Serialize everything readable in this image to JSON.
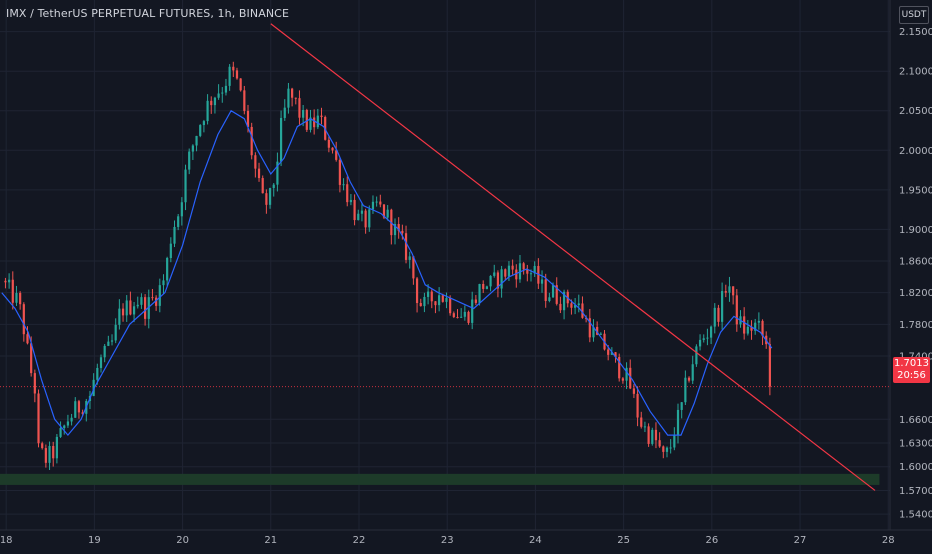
{
  "header": {
    "title": "IMX / TetherUS PERPETUAL FUTURES, 1h, BINANCE",
    "currency": "USDT"
  },
  "price_tag": {
    "price": "1.7013",
    "countdown": "20:56",
    "color": "#f23645"
  },
  "colors": {
    "background": "#131722",
    "grid": "#1f2433",
    "axis_text": "#b2b5be",
    "candle_up": "#26a69a",
    "candle_down": "#ef5350",
    "ma_line": "#2962ff",
    "trendline": "#f23645",
    "support_zone": "#1e3d2a"
  },
  "chart_data": {
    "type": "candlestick",
    "title": "IMX / TetherUS PERPETUAL FUTURES, 1h, BINANCE",
    "xlabel": "",
    "ylabel": "",
    "x_ticks": [
      "18",
      "19",
      "20",
      "21",
      "22",
      "23",
      "24",
      "25",
      "26",
      "27",
      "28"
    ],
    "y_ticks": [
      "2.1500",
      "2.1000",
      "2.0500",
      "2.0000",
      "1.9500",
      "1.9000",
      "1.8600",
      "1.8200",
      "1.7800",
      "1.7400",
      "1.6600",
      "1.6300",
      "1.6000",
      "1.5700",
      "1.5400"
    ],
    "ylim": [
      1.52,
      2.19
    ],
    "xlim": [
      17.93,
      28.02
    ],
    "grid": true,
    "last_price": 1.7013,
    "close_path": [
      [
        17.95,
        1.835
      ],
      [
        18.05,
        1.82
      ],
      [
        18.12,
        1.81
      ],
      [
        18.18,
        1.79
      ],
      [
        18.22,
        1.76
      ],
      [
        18.28,
        1.72
      ],
      [
        18.32,
        1.71
      ],
      [
        18.36,
        1.62
      ],
      [
        18.45,
        1.61
      ],
      [
        18.52,
        1.615
      ],
      [
        18.6,
        1.635
      ],
      [
        18.7,
        1.66
      ],
      [
        18.78,
        1.67
      ],
      [
        18.86,
        1.68
      ],
      [
        18.95,
        1.69
      ],
      [
        19.05,
        1.73
      ],
      [
        19.15,
        1.745
      ],
      [
        19.22,
        1.76
      ],
      [
        19.3,
        1.8
      ],
      [
        19.38,
        1.8
      ],
      [
        19.45,
        1.81
      ],
      [
        19.5,
        1.81
      ],
      [
        19.58,
        1.8
      ],
      [
        19.65,
        1.81
      ],
      [
        19.72,
        1.82
      ],
      [
        19.8,
        1.84
      ],
      [
        19.88,
        1.9
      ],
      [
        19.95,
        1.92
      ],
      [
        20.05,
        1.98
      ],
      [
        20.15,
        2.02
      ],
      [
        20.25,
        2.05
      ],
      [
        20.35,
        2.07
      ],
      [
        20.45,
        2.08
      ],
      [
        20.55,
        2.1
      ],
      [
        20.62,
        2.085
      ],
      [
        20.7,
        2.05
      ],
      [
        20.78,
        2.0
      ],
      [
        20.85,
        1.96
      ],
      [
        20.92,
        1.93
      ],
      [
        21.0,
        1.94
      ],
      [
        21.05,
        1.97
      ],
      [
        21.12,
        2.03
      ],
      [
        21.2,
        2.07
      ],
      [
        21.28,
        2.06
      ],
      [
        21.35,
        2.04
      ],
      [
        21.45,
        2.03
      ],
      [
        21.55,
        2.04
      ],
      [
        21.62,
        2.02
      ],
      [
        21.7,
        2.0
      ],
      [
        21.78,
        1.97
      ],
      [
        21.85,
        1.95
      ],
      [
        21.92,
        1.93
      ],
      [
        22.0,
        1.91
      ],
      [
        22.1,
        1.91
      ],
      [
        22.2,
        1.93
      ],
      [
        22.3,
        1.92
      ],
      [
        22.4,
        1.9
      ],
      [
        22.5,
        1.88
      ],
      [
        22.58,
        1.86
      ],
      [
        22.65,
        1.82
      ],
      [
        22.72,
        1.8
      ],
      [
        22.8,
        1.81
      ],
      [
        22.9,
        1.82
      ],
      [
        23.0,
        1.81
      ],
      [
        23.08,
        1.8
      ],
      [
        23.15,
        1.79
      ],
      [
        23.22,
        1.79
      ],
      [
        23.3,
        1.81
      ],
      [
        23.4,
        1.83
      ],
      [
        23.5,
        1.83
      ],
      [
        23.6,
        1.84
      ],
      [
        23.7,
        1.85
      ],
      [
        23.8,
        1.85
      ],
      [
        23.9,
        1.85
      ],
      [
        24.0,
        1.84
      ],
      [
        24.1,
        1.82
      ],
      [
        24.2,
        1.82
      ],
      [
        24.3,
        1.81
      ],
      [
        24.4,
        1.81
      ],
      [
        24.5,
        1.8
      ],
      [
        24.6,
        1.78
      ],
      [
        24.7,
        1.76
      ],
      [
        24.8,
        1.75
      ],
      [
        24.9,
        1.73
      ],
      [
        25.0,
        1.72
      ],
      [
        25.08,
        1.7
      ],
      [
        25.15,
        1.67
      ],
      [
        25.22,
        1.65
      ],
      [
        25.3,
        1.64
      ],
      [
        25.38,
        1.63
      ],
      [
        25.45,
        1.61
      ],
      [
        25.52,
        1.62
      ],
      [
        25.58,
        1.65
      ],
      [
        25.65,
        1.67
      ],
      [
        25.72,
        1.71
      ],
      [
        25.8,
        1.74
      ],
      [
        25.88,
        1.76
      ],
      [
        25.95,
        1.77
      ],
      [
        26.02,
        1.79
      ],
      [
        26.1,
        1.8
      ],
      [
        26.18,
        1.84
      ],
      [
        26.25,
        1.8
      ],
      [
        26.32,
        1.78
      ],
      [
        26.4,
        1.77
      ],
      [
        26.48,
        1.78
      ],
      [
        26.56,
        1.77
      ],
      [
        26.62,
        1.75
      ],
      [
        26.68,
        1.7013
      ]
    ],
    "moving_average": [
      [
        17.95,
        1.82
      ],
      [
        18.1,
        1.8
      ],
      [
        18.25,
        1.77
      ],
      [
        18.4,
        1.71
      ],
      [
        18.55,
        1.66
      ],
      [
        18.7,
        1.64
      ],
      [
        18.85,
        1.66
      ],
      [
        19.0,
        1.7
      ],
      [
        19.2,
        1.74
      ],
      [
        19.4,
        1.78
      ],
      [
        19.6,
        1.8
      ],
      [
        19.8,
        1.82
      ],
      [
        20.0,
        1.88
      ],
      [
        20.2,
        1.96
      ],
      [
        20.4,
        2.02
      ],
      [
        20.55,
        2.05
      ],
      [
        20.7,
        2.04
      ],
      [
        20.85,
        2.0
      ],
      [
        21.0,
        1.97
      ],
      [
        21.15,
        1.99
      ],
      [
        21.3,
        2.03
      ],
      [
        21.45,
        2.04
      ],
      [
        21.6,
        2.03
      ],
      [
        21.75,
        2.0
      ],
      [
        21.9,
        1.96
      ],
      [
        22.05,
        1.93
      ],
      [
        22.25,
        1.92
      ],
      [
        22.45,
        1.9
      ],
      [
        22.6,
        1.87
      ],
      [
        22.75,
        1.83
      ],
      [
        22.9,
        1.82
      ],
      [
        23.1,
        1.81
      ],
      [
        23.3,
        1.8
      ],
      [
        23.5,
        1.82
      ],
      [
        23.7,
        1.84
      ],
      [
        23.9,
        1.85
      ],
      [
        24.1,
        1.84
      ],
      [
        24.3,
        1.82
      ],
      [
        24.5,
        1.8
      ],
      [
        24.7,
        1.77
      ],
      [
        24.9,
        1.74
      ],
      [
        25.1,
        1.71
      ],
      [
        25.3,
        1.67
      ],
      [
        25.5,
        1.64
      ],
      [
        25.65,
        1.64
      ],
      [
        25.8,
        1.68
      ],
      [
        25.95,
        1.73
      ],
      [
        26.1,
        1.77
      ],
      [
        26.25,
        1.79
      ],
      [
        26.4,
        1.78
      ],
      [
        26.55,
        1.77
      ],
      [
        26.68,
        1.75
      ]
    ],
    "trendline": {
      "start": [
        21.0,
        2.16
      ],
      "end": [
        27.85,
        1.57
      ]
    },
    "support_zone": {
      "x_start": 17.93,
      "x_end": 27.9,
      "y_low": 1.577,
      "y_high": 1.591
    }
  }
}
